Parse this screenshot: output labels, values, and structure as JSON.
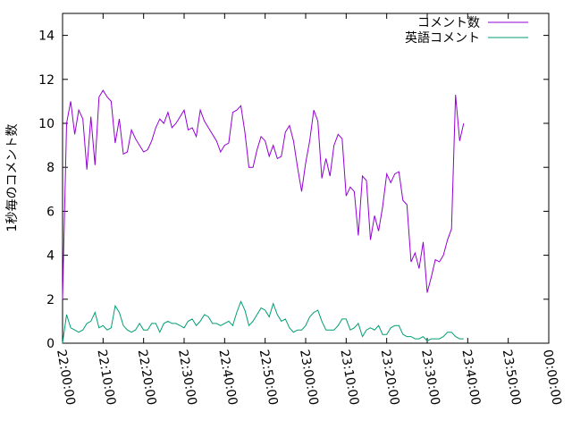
{
  "chart_data": {
    "type": "line",
    "title": "",
    "xlabel": "",
    "ylabel": "1秒毎のコメント数",
    "xlim": [
      "22:00:00",
      "00:00:00"
    ],
    "ylim": [
      0,
      15
    ],
    "grid": false,
    "legend": "top-right",
    "x_ticks": [
      "22:00:00",
      "22:10:00",
      "22:20:00",
      "22:30:00",
      "22:40:00",
      "22:50:00",
      "23:00:00",
      "23:10:00",
      "23:20:00",
      "23:30:00",
      "23:40:00",
      "23:50:00",
      "00:00:00"
    ],
    "y_ticks": [
      "0",
      "2",
      "4",
      "6",
      "8",
      "10",
      "12",
      "14"
    ],
    "x_step_seconds": 60,
    "series": [
      {
        "name": "コメント数",
        "color": "#9400d3",
        "values": [
          2.0,
          10.0,
          11.0,
          9.5,
          10.6,
          10.2,
          7.9,
          10.3,
          8.1,
          11.2,
          11.5,
          11.2,
          11.0,
          9.1,
          10.2,
          8.6,
          8.7,
          9.7,
          9.3,
          9.0,
          8.7,
          8.8,
          9.2,
          9.8,
          10.2,
          10.0,
          10.5,
          9.8,
          10.0,
          10.3,
          10.6,
          9.7,
          9.8,
          9.4,
          10.6,
          10.1,
          9.8,
          9.5,
          9.2,
          8.7,
          9.0,
          9.1,
          10.5,
          10.6,
          10.8,
          9.6,
          8.0,
          8.0,
          8.8,
          9.4,
          9.2,
          8.5,
          9.0,
          8.4,
          8.5,
          9.6,
          9.9,
          9.2,
          8.0,
          6.9,
          8.2,
          9.2,
          10.6,
          10.1,
          7.5,
          8.4,
          7.6,
          9.0,
          9.5,
          9.3,
          6.7,
          7.1,
          6.9,
          4.9,
          7.6,
          7.4,
          4.7,
          5.8,
          5.1,
          6.2,
          7.7,
          7.3,
          7.7,
          7.8,
          6.5,
          6.3,
          3.7,
          4.1,
          3.4,
          4.6,
          2.3,
          3.0,
          3.8,
          3.7,
          4.0,
          4.7,
          5.2,
          11.3,
          9.2,
          10.0
        ]
      },
      {
        "name": "英語コメント",
        "color": "#009e73",
        "values": [
          0.0,
          1.3,
          0.7,
          0.6,
          0.5,
          0.6,
          0.9,
          1.0,
          1.4,
          0.7,
          0.8,
          0.6,
          0.7,
          1.7,
          1.4,
          0.8,
          0.6,
          0.5,
          0.6,
          0.9,
          0.6,
          0.6,
          0.9,
          0.9,
          0.5,
          0.9,
          1.0,
          0.9,
          0.9,
          0.8,
          0.7,
          1.0,
          1.1,
          0.8,
          1.0,
          1.3,
          1.2,
          0.9,
          0.9,
          0.8,
          0.9,
          1.0,
          0.8,
          1.4,
          1.9,
          1.5,
          0.8,
          1.0,
          1.3,
          1.6,
          1.5,
          1.2,
          1.8,
          1.3,
          1.0,
          1.1,
          0.7,
          0.5,
          0.6,
          0.6,
          0.8,
          1.2,
          1.4,
          1.5,
          1.0,
          0.6,
          0.6,
          0.6,
          0.8,
          1.1,
          1.1,
          0.6,
          0.7,
          0.9,
          0.3,
          0.6,
          0.7,
          0.6,
          0.8,
          0.4,
          0.4,
          0.7,
          0.8,
          0.8,
          0.4,
          0.3,
          0.3,
          0.2,
          0.2,
          0.3,
          0.1,
          0.2,
          0.2,
          0.2,
          0.3,
          0.5,
          0.5,
          0.3,
          0.2,
          0.2
        ]
      }
    ]
  }
}
